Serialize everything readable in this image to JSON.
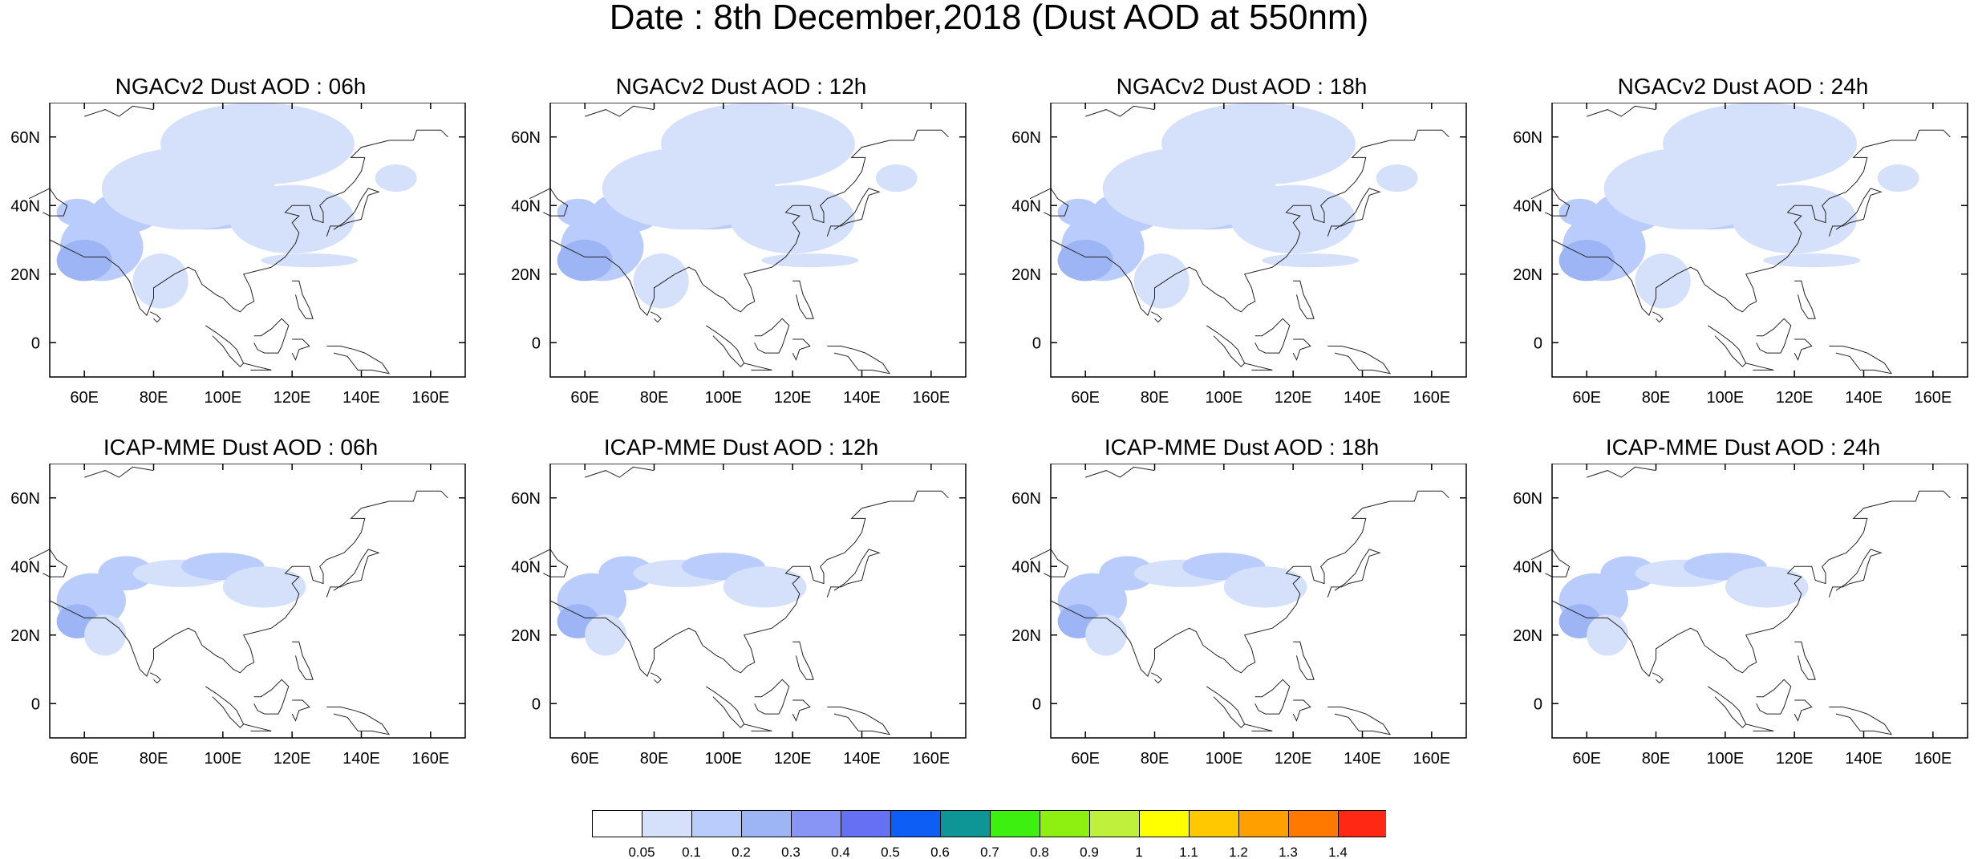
{
  "figure": {
    "title": "Date : 8th December,2018 (Dust AOD at 550nm)"
  },
  "axes": {
    "lat_ticks": [
      "60N",
      "40N",
      "20N",
      "0"
    ],
    "lon_ticks": [
      "60E",
      "80E",
      "100E",
      "120E",
      "140E",
      "160E"
    ],
    "lat_range": [
      -10,
      70
    ],
    "lon_range": [
      50,
      170
    ]
  },
  "panels": [
    {
      "title": "NGACv2 Dust AOD : 06h"
    },
    {
      "title": "NGACv2 Dust AOD : 12h"
    },
    {
      "title": "NGACv2 Dust AOD : 18h"
    },
    {
      "title": "NGACv2 Dust AOD : 24h"
    },
    {
      "title": "ICAP-MME Dust AOD : 06h"
    },
    {
      "title": "ICAP-MME Dust AOD : 12h"
    },
    {
      "title": "ICAP-MME Dust AOD : 18h"
    },
    {
      "title": "ICAP-MME Dust AOD : 24h"
    }
  ],
  "colorbar": {
    "labels": [
      "0.05",
      "0.1",
      "0.2",
      "0.3",
      "0.4",
      "0.5",
      "0.6",
      "0.7",
      "0.8",
      "0.9",
      "1",
      "1.1",
      "1.2",
      "1.3",
      "1.4"
    ],
    "colors": [
      "#ffffff",
      "#d5e0fb",
      "#b9ccfb",
      "#9db4f5",
      "#8895f4",
      "#6670f2",
      "#0d5ef5",
      "#0e9696",
      "#3ef010",
      "#8ef010",
      "#bef03c",
      "#ffff00",
      "#ffc800",
      "#ffa000",
      "#ff7800",
      "#ff2814"
    ]
  }
}
